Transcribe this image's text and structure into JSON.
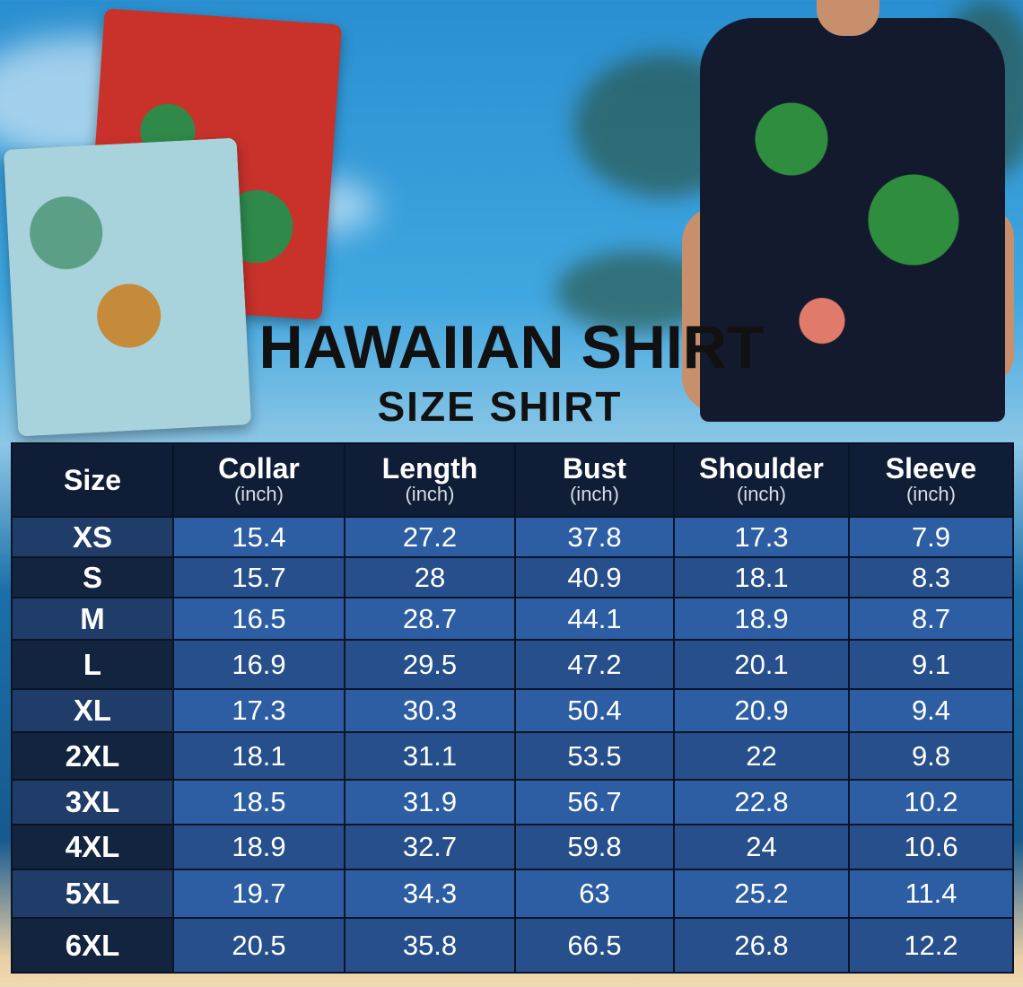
{
  "header": {
    "title": "HAWAIIAN SHIRT",
    "subtitle": "SIZE SHIRT"
  },
  "table": {
    "columns": [
      {
        "label": "Size",
        "unit": ""
      },
      {
        "label": "Collar",
        "unit": "(inch)"
      },
      {
        "label": "Length",
        "unit": "(inch)"
      },
      {
        "label": "Bust",
        "unit": "(inch)"
      },
      {
        "label": "Shoulder",
        "unit": "(inch)"
      },
      {
        "label": "Sleeve",
        "unit": "(inch)"
      }
    ],
    "rows": [
      [
        "XS",
        "15.4",
        "27.2",
        "37.8",
        "17.3",
        "7.9"
      ],
      [
        "S",
        "15.7",
        "28",
        "40.9",
        "18.1",
        "8.3"
      ],
      [
        "M",
        "16.5",
        "28.7",
        "44.1",
        "18.9",
        "8.7"
      ],
      [
        "L",
        "16.9",
        "29.5",
        "47.2",
        "20.1",
        "9.1"
      ],
      [
        "XL",
        "17.3",
        "30.3",
        "50.4",
        "20.9",
        "9.4"
      ],
      [
        "2XL",
        "18.1",
        "31.1",
        "53.5",
        "22",
        "9.8"
      ],
      [
        "3XL",
        "18.5",
        "31.9",
        "56.7",
        "22.8",
        "10.2"
      ],
      [
        "4XL",
        "18.9",
        "32.7",
        "59.8",
        "24",
        "10.6"
      ],
      [
        "5XL",
        "19.7",
        "34.3",
        "63",
        "25.2",
        "11.4"
      ],
      [
        "6XL",
        "20.5",
        "35.8",
        "66.5",
        "26.8",
        "12.2"
      ]
    ]
  },
  "colors": {
    "header_bg": "#0f1d36",
    "row_light": "#2d5ea3",
    "row_dark": "#264f8c",
    "size_col": "#13243f"
  }
}
